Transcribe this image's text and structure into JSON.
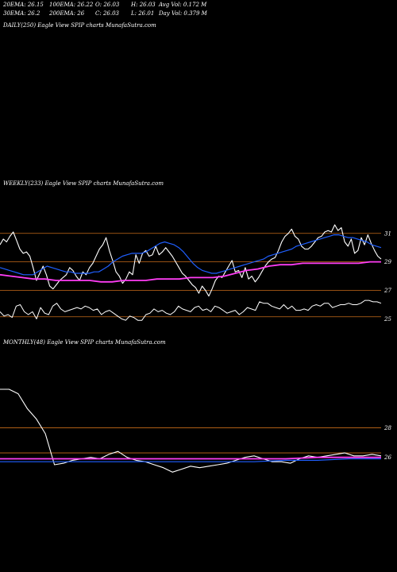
{
  "header": {
    "ema20": "20EMA: 26.15",
    "ema100": "100EMA: 26.22",
    "open": "O: 26.03",
    "high": "H: 26.03",
    "avgvol": "Avg Vol: 0.172  M",
    "ema30": "30EMA: 26.2",
    "ema200": "200EMA: 26",
    "close": "C: 26.03",
    "low": "L: 26.01",
    "dayvol": "Day Vol: 0.379 M"
  },
  "daily_label": "DAILY(250) Eagle   View  SPIP charts MunafaSutra.com",
  "weekly_label": "WEEKLY(233) Eagle   View  SPIP charts MunafaSutra.com",
  "monthly_label": "MONTHLY(48) Eagle   View  SPIP charts MunafaSutra.com",
  "colors": {
    "background": "#000000",
    "price": "#ffffff",
    "ema_fast": "#1f5fff",
    "ema_slow": "#ff3df5",
    "ema_brown": "#c87a3a",
    "ema_orange": "#d0601a",
    "gridline": "#c86b1a",
    "volume": "#ffffff"
  },
  "chart_data": [
    {
      "type": "line",
      "panel": "weekly",
      "yticks": [
        31,
        29,
        27,
        25
      ],
      "hlines": [
        31,
        29,
        27,
        25.15
      ],
      "ylim": [
        24.8,
        31.6
      ],
      "series": [
        {
          "name": "price",
          "values": [
            30.2,
            30.6,
            30.4,
            30.8,
            31.1,
            30.5,
            29.9,
            29.6,
            29.7,
            29.4,
            28.6,
            27.7,
            28.2,
            28.7,
            28.1,
            27.3,
            27.1,
            27.4,
            27.7,
            27.9,
            28.1,
            28.6,
            28.4,
            28.0,
            27.7,
            28.3,
            28.1,
            28.6,
            28.9,
            29.4,
            29.9,
            30.2,
            30.7,
            29.8,
            29.1,
            28.3,
            28.0,
            27.5,
            27.8,
            28.3,
            28.1,
            29.5,
            28.9,
            29.6,
            29.8,
            29.4,
            29.5,
            30.1,
            29.5,
            29.7,
            30.0,
            29.7,
            29.4,
            29.0,
            28.6,
            28.2,
            28.0,
            27.7,
            27.4,
            27.2,
            26.8,
            27.3,
            27.0,
            26.6,
            27.1,
            27.7,
            28.0,
            27.9,
            28.3,
            28.7,
            29.1,
            28.3,
            28.4,
            27.9,
            28.6,
            27.8,
            28.0,
            27.6,
            27.9,
            28.3,
            28.7,
            29.0,
            29.2,
            29.3,
            29.8,
            30.4,
            30.8,
            31.0,
            31.3,
            30.8,
            30.6,
            30.1,
            29.9,
            29.9,
            30.1,
            30.4,
            30.7,
            30.8,
            31.1,
            31.2,
            31.1,
            31.6,
            31.2,
            31.4,
            30.4,
            30.1,
            30.6,
            29.6,
            29.8,
            30.7,
            30.2,
            30.9,
            30.3,
            29.8,
            29.4,
            29.2
          ]
        },
        {
          "name": "ema-fast",
          "values": [
            28.6,
            28.5,
            28.4,
            28.3,
            28.2,
            28.1,
            28.1,
            28.1,
            28.3,
            28.5,
            28.7,
            28.6,
            28.5,
            28.4,
            28.3,
            28.3,
            28.2,
            28.2,
            28.2,
            28.2,
            28.3,
            28.3,
            28.5,
            28.7,
            29.0,
            29.2,
            29.4,
            29.5,
            29.6,
            29.6,
            29.6,
            29.7,
            29.9,
            30.1,
            30.3,
            30.4,
            30.3,
            30.2,
            30.0,
            29.7,
            29.3,
            28.9,
            28.6,
            28.4,
            28.3,
            28.2,
            28.2,
            28.3,
            28.4,
            28.5,
            28.6,
            28.7,
            28.8,
            28.9,
            29.0,
            29.1,
            29.2,
            29.4,
            29.5,
            29.6,
            29.7,
            29.8,
            29.9,
            30.1,
            30.2,
            30.3,
            30.4,
            30.5,
            30.6,
            30.7,
            30.8,
            30.9,
            30.9,
            30.8,
            30.7,
            30.7,
            30.6,
            30.5,
            30.4,
            30.2,
            30.1,
            30.0
          ]
        },
        {
          "name": "ema-slow",
          "values": [
            28.1,
            28.0,
            27.9,
            27.8,
            27.8,
            27.7,
            27.7,
            27.7,
            27.7,
            27.6,
            27.6,
            27.7,
            27.7,
            27.7,
            27.8,
            27.8,
            27.8,
            27.9,
            27.9,
            27.9,
            28.0,
            28.2,
            28.4,
            28.5,
            28.7,
            28.8,
            28.8,
            28.9,
            28.9,
            28.9,
            28.9,
            28.9,
            28.9,
            29.0,
            29.0
          ]
        },
        {
          "name": "volume",
          "values": [
            25.5,
            25.2,
            25.3,
            25.1,
            25.9,
            26.0,
            25.5,
            25.3,
            25.5,
            25.0,
            25.8,
            25.4,
            25.3,
            25.9,
            26.1,
            25.7,
            25.5,
            25.6,
            25.7,
            25.8,
            25.7,
            25.9,
            25.8,
            25.6,
            25.7,
            25.3,
            25.5,
            25.6,
            25.4,
            25.2,
            25.0,
            24.9,
            25.2,
            25.1,
            24.9,
            24.9,
            25.3,
            25.4,
            25.7,
            25.5,
            25.6,
            25.4,
            25.3,
            25.5,
            25.9,
            25.7,
            25.6,
            25.5,
            25.8,
            25.9,
            25.6,
            25.7,
            25.5,
            25.9,
            25.8,
            25.6,
            25.4,
            25.5,
            25.6,
            25.3,
            25.5,
            25.8,
            25.7,
            25.6,
            26.2,
            26.1,
            26.1,
            25.9,
            25.8,
            25.7,
            26.0,
            25.7,
            25.9,
            25.6,
            25.6,
            25.7,
            25.6,
            25.9,
            26.0,
            25.9,
            26.1,
            26.1,
            25.8,
            25.9,
            26.0,
            26.0,
            26.1,
            26.0,
            26.0,
            26.1,
            26.3,
            26.3,
            26.2,
            26.2,
            26.1
          ]
        }
      ]
    },
    {
      "type": "line",
      "panel": "monthly",
      "yticks": [
        28,
        26
      ],
      "hlines": [
        28,
        26.3
      ],
      "ylim": [
        24.8,
        30.6
      ],
      "series": [
        {
          "name": "price",
          "values": [
            30.6,
            30.6,
            30.3,
            29.3,
            28.6,
            27.6,
            25.5,
            25.6,
            25.8,
            25.9,
            26.0,
            25.9,
            26.2,
            26.4,
            26.0,
            25.8,
            25.7,
            25.5,
            25.3,
            25.0,
            25.2,
            25.4,
            25.3,
            25.4,
            25.5,
            25.6,
            25.8,
            26.0,
            26.1,
            25.9,
            25.7,
            25.7,
            25.6,
            25.9,
            26.1,
            26.0,
            26.1,
            26.2,
            26.3,
            26.1,
            26.1,
            26.2,
            26.1
          ]
        },
        {
          "name": "ema-fast",
          "values": [
            25.7,
            25.7,
            25.7,
            25.7,
            25.7,
            25.7,
            25.7,
            25.7,
            25.7,
            25.8,
            25.8,
            25.9,
            25.9
          ]
        },
        {
          "name": "ema-slow",
          "values": [
            25.9,
            25.9,
            25.9,
            25.9,
            25.9,
            25.9,
            25.9,
            25.9,
            25.9,
            25.9,
            26.0,
            26.0,
            26.0
          ]
        }
      ]
    }
  ]
}
